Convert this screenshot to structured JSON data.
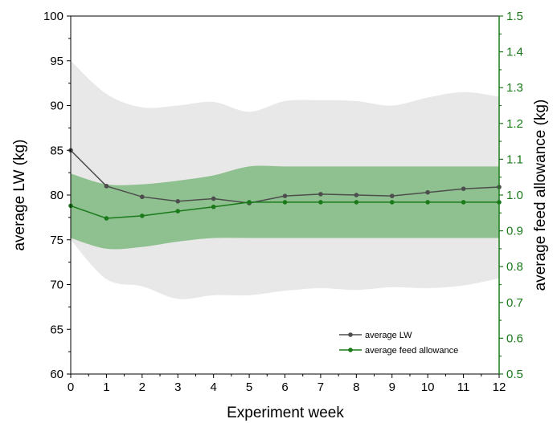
{
  "chart_data": {
    "type": "line",
    "xlabel": "Experiment week",
    "ylabel_left": "average LW (kg)",
    "ylabel_right": "average feed allowance (kg)",
    "x": [
      0,
      1,
      2,
      3,
      4,
      5,
      6,
      7,
      8,
      9,
      10,
      11,
      12
    ],
    "xlim": [
      0,
      12
    ],
    "ylim_left": [
      60,
      100
    ],
    "ylim_right": [
      0.5,
      1.5
    ],
    "yticks_left": [
      60,
      65,
      70,
      75,
      80,
      85,
      90,
      95,
      100
    ],
    "yticks_right": [
      "0.5",
      "0.6",
      "0.7",
      "0.8",
      "0.9",
      "1.0",
      "1.1",
      "1.2",
      "1.3",
      "1.4",
      "1.5"
    ],
    "legend_position": "bottom-right",
    "series": [
      {
        "name": "average LW",
        "axis": "left",
        "color": "#4d4d4d",
        "values": [
          85.0,
          81.0,
          79.8,
          79.3,
          79.6,
          79.1,
          79.9,
          80.1,
          80.0,
          79.9,
          80.3,
          80.7,
          80.9
        ],
        "band_color": "#e8e8e8",
        "band_upper": [
          95.0,
          91.3,
          89.8,
          90.0,
          90.4,
          89.3,
          90.5,
          90.6,
          90.5,
          90.0,
          90.9,
          91.5,
          91.0
        ],
        "band_lower": [
          75.0,
          70.6,
          69.8,
          68.4,
          68.8,
          68.8,
          69.3,
          69.6,
          69.4,
          69.7,
          69.6,
          69.9,
          70.7
        ]
      },
      {
        "name": "average feed allowance",
        "axis": "right",
        "color": "#1a7a1a",
        "values": [
          0.97,
          0.935,
          0.942,
          0.955,
          0.967,
          0.98,
          0.98,
          0.98,
          0.98,
          0.98,
          0.98,
          0.98,
          0.98
        ],
        "band_color": "#8fc08f",
        "band_upper": [
          1.06,
          1.03,
          1.03,
          1.04,
          1.055,
          1.08,
          1.08,
          1.08,
          1.08,
          1.08,
          1.08,
          1.08,
          1.08
        ],
        "band_lower": [
          0.88,
          0.85,
          0.855,
          0.87,
          0.88,
          0.88,
          0.88,
          0.88,
          0.88,
          0.88,
          0.88,
          0.88,
          0.88
        ]
      }
    ]
  },
  "colors": {
    "left_axis": "#000000",
    "right_axis": "#1a7a1a"
  }
}
